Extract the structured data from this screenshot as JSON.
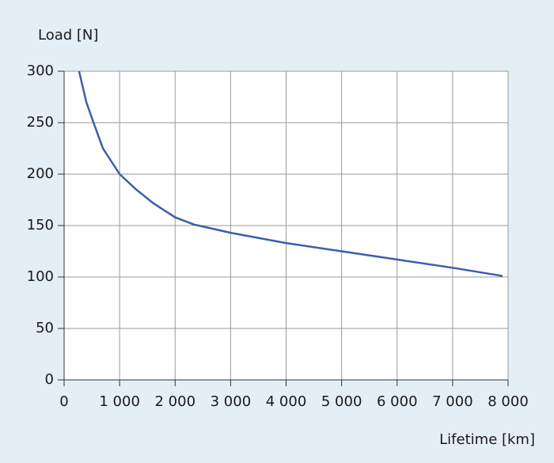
{
  "chart_data": {
    "type": "line",
    "y_label": "Load [N]",
    "x_label": "Lifetime [km]",
    "x": [
      270,
      400,
      530,
      700,
      1000,
      1300,
      1600,
      2000,
      2340,
      3000,
      4000,
      5000,
      6000,
      7000,
      7900
    ],
    "series": [
      {
        "color": "#3b5fa8",
        "values": [
          300,
          270,
          250,
          225,
          200,
          185,
          172,
          158,
          151,
          143,
          133,
          125,
          117,
          109,
          101
        ]
      }
    ],
    "xlim": [
      0,
      8000
    ],
    "xticks": [
      0,
      {
        "value": 1000,
        "label": "1 000"
      },
      {
        "value": 2000,
        "label": "2 000"
      },
      {
        "value": 3000,
        "label": "3 000"
      },
      {
        "value": 4000,
        "label": "4 000"
      },
      {
        "value": 5000,
        "label": "5 000"
      },
      {
        "value": 6000,
        "label": "6 000"
      },
      {
        "value": 7000,
        "label": "7 000"
      },
      {
        "value": 8000,
        "label": "8 000"
      }
    ],
    "ylim": [
      0,
      300
    ],
    "yticks": [
      0,
      50,
      100,
      150,
      200,
      250,
      300
    ],
    "grid": true
  }
}
